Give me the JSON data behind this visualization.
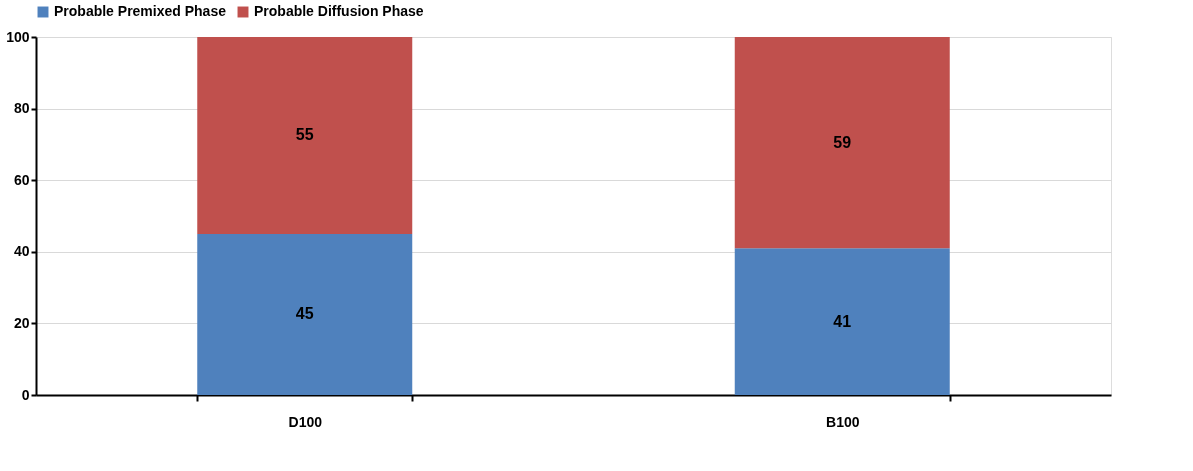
{
  "chart_data": {
    "type": "bar",
    "stacked": true,
    "categories": [
      "D100",
      "B100"
    ],
    "series": [
      {
        "name": "Probable Premixed Phase",
        "color": "#4f81bd",
        "values": [
          45,
          41
        ]
      },
      {
        "name": "Probable Diffusion Phase",
        "color": "#c0504d",
        "values": [
          55,
          59
        ]
      }
    ],
    "ylim": [
      0,
      100
    ],
    "yticks": [
      0,
      20,
      40,
      60,
      80,
      100
    ],
    "grid": "y",
    "legend": "top",
    "data_labels": true
  }
}
